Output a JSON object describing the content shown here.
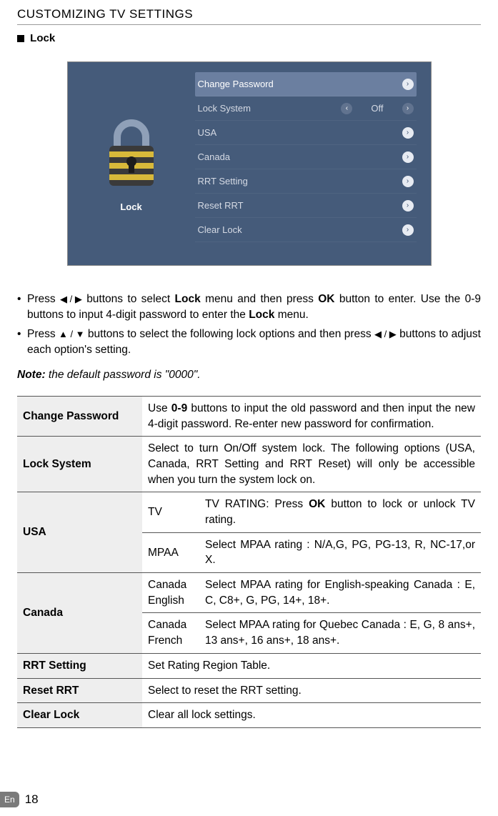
{
  "page": {
    "section_title": "CUSTOMIZING TV SETTINGS",
    "heading": "Lock",
    "footer_lang": "En",
    "footer_page": "18"
  },
  "menu": {
    "left_label": "Lock",
    "rows": [
      {
        "label": "Change Password",
        "value": "",
        "highlight": true,
        "left_chev": false,
        "right_chev": true
      },
      {
        "label": "Lock System",
        "value": "Off",
        "highlight": false,
        "left_chev": true,
        "right_chev": true
      },
      {
        "label": "USA",
        "value": "",
        "highlight": false,
        "left_chev": false,
        "right_chev": true
      },
      {
        "label": "Canada",
        "value": "",
        "highlight": false,
        "left_chev": false,
        "right_chev": true
      },
      {
        "label": "RRT Setting",
        "value": "",
        "highlight": false,
        "left_chev": false,
        "right_chev": true
      },
      {
        "label": "Reset RRT",
        "value": "",
        "highlight": false,
        "left_chev": false,
        "right_chev": true
      },
      {
        "label": "Clear Lock",
        "value": "",
        "highlight": false,
        "left_chev": false,
        "right_chev": true
      }
    ]
  },
  "bullets": {
    "b1_a": "Press ",
    "b1_b": " buttons to select ",
    "b1_bold1": "Lock",
    "b1_c": " menu and then press ",
    "b1_bold2": "OK",
    "b1_d": " button to enter. Use the 0-9 buttons to input 4-digit password to enter the ",
    "b1_bold3": "Lock",
    "b1_e": " menu.",
    "b2_a": "Press ",
    "b2_b": " buttons to select the following lock options and then press ",
    "b2_c": " buttons to adjust each option's setting."
  },
  "note": {
    "label": "Note:",
    "text": " the default password is \"0000\"."
  },
  "table": {
    "change_password": {
      "label": "Change Password",
      "desc_a": "Use ",
      "desc_bold": "0-9",
      "desc_b": " buttons to input the old password and then input the new 4-digit password. Re-enter new password for confirmation."
    },
    "lock_system": {
      "label": "Lock System",
      "desc": "Select to turn On/Off system lock. The following options (USA, Canada, RRT Setting and RRT Reset) will only be accessible when you turn the system lock on."
    },
    "usa": {
      "label": "USA",
      "tv_label": "TV",
      "tv_desc_a": "TV RATING: Press ",
      "tv_desc_bold": "OK",
      "tv_desc_b": " button to lock or unlock TV rating.",
      "mpaa_label": "MPAA",
      "mpaa_desc": "Select MPAA rating : N/A,G, PG, PG-13, R, NC-17,or X."
    },
    "canada": {
      "label": "Canada",
      "eng_label": "Canada English",
      "eng_desc": "Select MPAA rating for English-speaking Canada : E, C, C8+, G, PG, 14+, 18+.",
      "fr_label": "Canada French",
      "fr_desc": "Select MPAA rating for Quebec Canada : E, G, 8 ans+, 13 ans+, 16 ans+, 18 ans+."
    },
    "rrt_setting": {
      "label": "RRT Setting",
      "desc": "Set Rating Region Table."
    },
    "reset_rrt": {
      "label": "Reset RRT",
      "desc": "Select to reset the RRT setting."
    },
    "clear_lock": {
      "label": "Clear Lock",
      "desc": "Clear all lock settings."
    }
  }
}
